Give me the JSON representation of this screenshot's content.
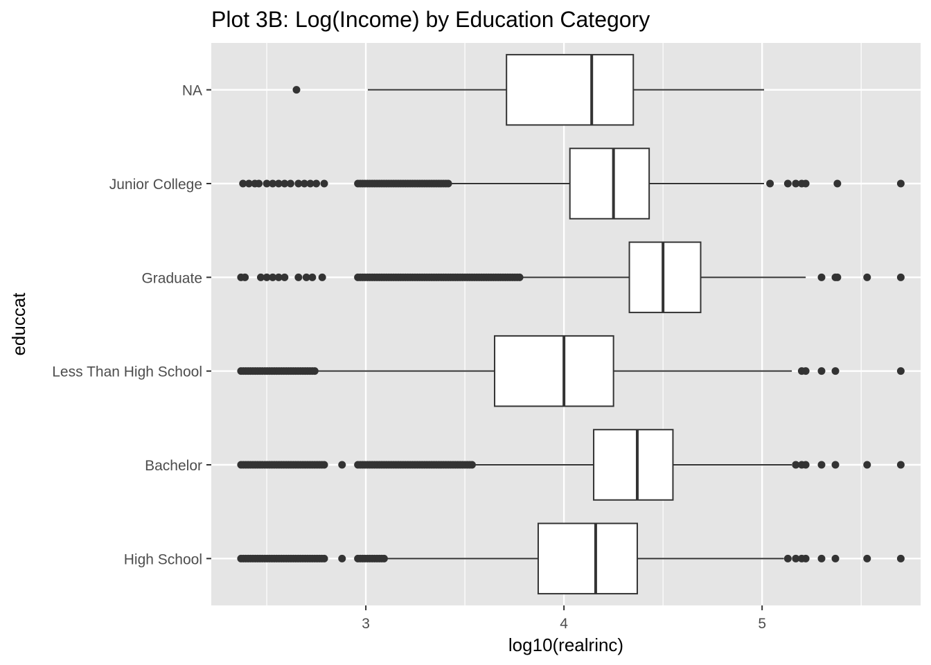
{
  "chart_data": {
    "type": "boxplot",
    "orientation": "horizontal",
    "title": "Plot 3B: Log(Income) by Education Category",
    "xlabel": "log10(realrinc)",
    "ylabel": "educcat",
    "xlim": [
      2.22,
      5.8
    ],
    "xticks": [
      3,
      4,
      5
    ],
    "xtick_labels": [
      "3",
      "4",
      "5"
    ],
    "grid": true,
    "colors": {
      "panel": "#e5e5e5",
      "grid": "#ffffff",
      "box_fill": "#ffffff",
      "box_line": "#333333",
      "outlier": "#333333"
    },
    "categories": [
      "NA",
      "Junior College",
      "Graduate",
      "Less Than High School",
      "Bachelor",
      "High School"
    ],
    "series": [
      {
        "category": "NA",
        "whisker_low": 3.01,
        "q1": 3.71,
        "median": 4.14,
        "q3": 4.35,
        "whisker_high": 5.01,
        "outliers": [
          2.65
        ],
        "outlier_ranges": []
      },
      {
        "category": "Junior College",
        "whisker_low": 3.43,
        "q1": 4.03,
        "median": 4.25,
        "q3": 4.43,
        "whisker_high": 5.01,
        "outliers": [
          2.38,
          2.41,
          2.44,
          2.46,
          2.5,
          2.53,
          2.56,
          2.59,
          2.62,
          2.66,
          2.69,
          2.72,
          2.75,
          2.79,
          5.04,
          5.13,
          5.17,
          5.2,
          5.22,
          5.38,
          5.7
        ],
        "outlier_ranges": [
          [
            2.96,
            3.42
          ]
        ]
      },
      {
        "category": "Graduate",
        "whisker_low": 3.79,
        "q1": 4.33,
        "median": 4.5,
        "q3": 4.69,
        "whisker_high": 5.22,
        "outliers": [
          2.37,
          2.39,
          2.47,
          2.5,
          2.53,
          2.56,
          2.59,
          2.66,
          2.7,
          2.73,
          2.78,
          5.3,
          5.37,
          5.38,
          5.53,
          5.7
        ],
        "outlier_ranges": [
          [
            2.96,
            3.78
          ]
        ]
      },
      {
        "category": "Less Than High School",
        "whisker_low": 2.76,
        "q1": 3.65,
        "median": 4.0,
        "q3": 4.25,
        "whisker_high": 5.15,
        "outliers": [
          5.2,
          5.22,
          5.3,
          5.37,
          5.7
        ],
        "outlier_ranges": [
          [
            2.37,
            2.75
          ]
        ]
      },
      {
        "category": "Bachelor",
        "whisker_low": 3.55,
        "q1": 4.15,
        "median": 4.37,
        "q3": 4.55,
        "whisker_high": 5.15,
        "outliers": [
          2.88,
          5.17,
          5.2,
          5.22,
          5.3,
          5.37,
          5.53,
          5.7
        ],
        "outlier_ranges": [
          [
            2.37,
            2.79
          ],
          [
            2.96,
            3.54
          ]
        ]
      },
      {
        "category": "High School",
        "whisker_low": 3.11,
        "q1": 3.87,
        "median": 4.16,
        "q3": 4.37,
        "whisker_high": 5.11,
        "outliers": [
          2.88,
          5.13,
          5.17,
          5.2,
          5.22,
          5.3,
          5.37,
          5.53,
          5.7
        ],
        "outlier_ranges": [
          [
            2.37,
            2.79
          ],
          [
            2.96,
            3.1
          ]
        ]
      }
    ]
  }
}
